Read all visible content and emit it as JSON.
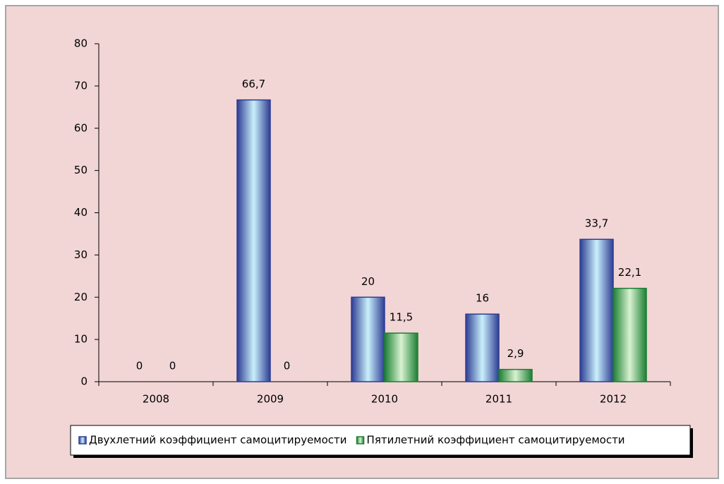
{
  "chart_data": {
    "type": "bar",
    "categories": [
      "2008",
      "2009",
      "2010",
      "2011",
      "2012"
    ],
    "series": [
      {
        "name": "Двухлетний коэффициент самоцитируемости",
        "color": "#2e3d94",
        "values": [
          0,
          66.7,
          20,
          16,
          33.7
        ],
        "value_labels": [
          "0",
          "66,7",
          "20",
          "16",
          "33,7"
        ]
      },
      {
        "name": "Пятилетний коэффициент самоцитируемости",
        "color": "#1b7f32",
        "values": [
          0,
          0,
          11.5,
          2.9,
          22.1
        ],
        "value_labels": [
          "0",
          "0",
          "11,5",
          "2,9",
          "22,1"
        ]
      }
    ],
    "ylim": [
      0,
      80
    ],
    "yticks": [
      0,
      10,
      20,
      30,
      40,
      50,
      60,
      70,
      80
    ],
    "grid": false,
    "legend": "bottom"
  }
}
